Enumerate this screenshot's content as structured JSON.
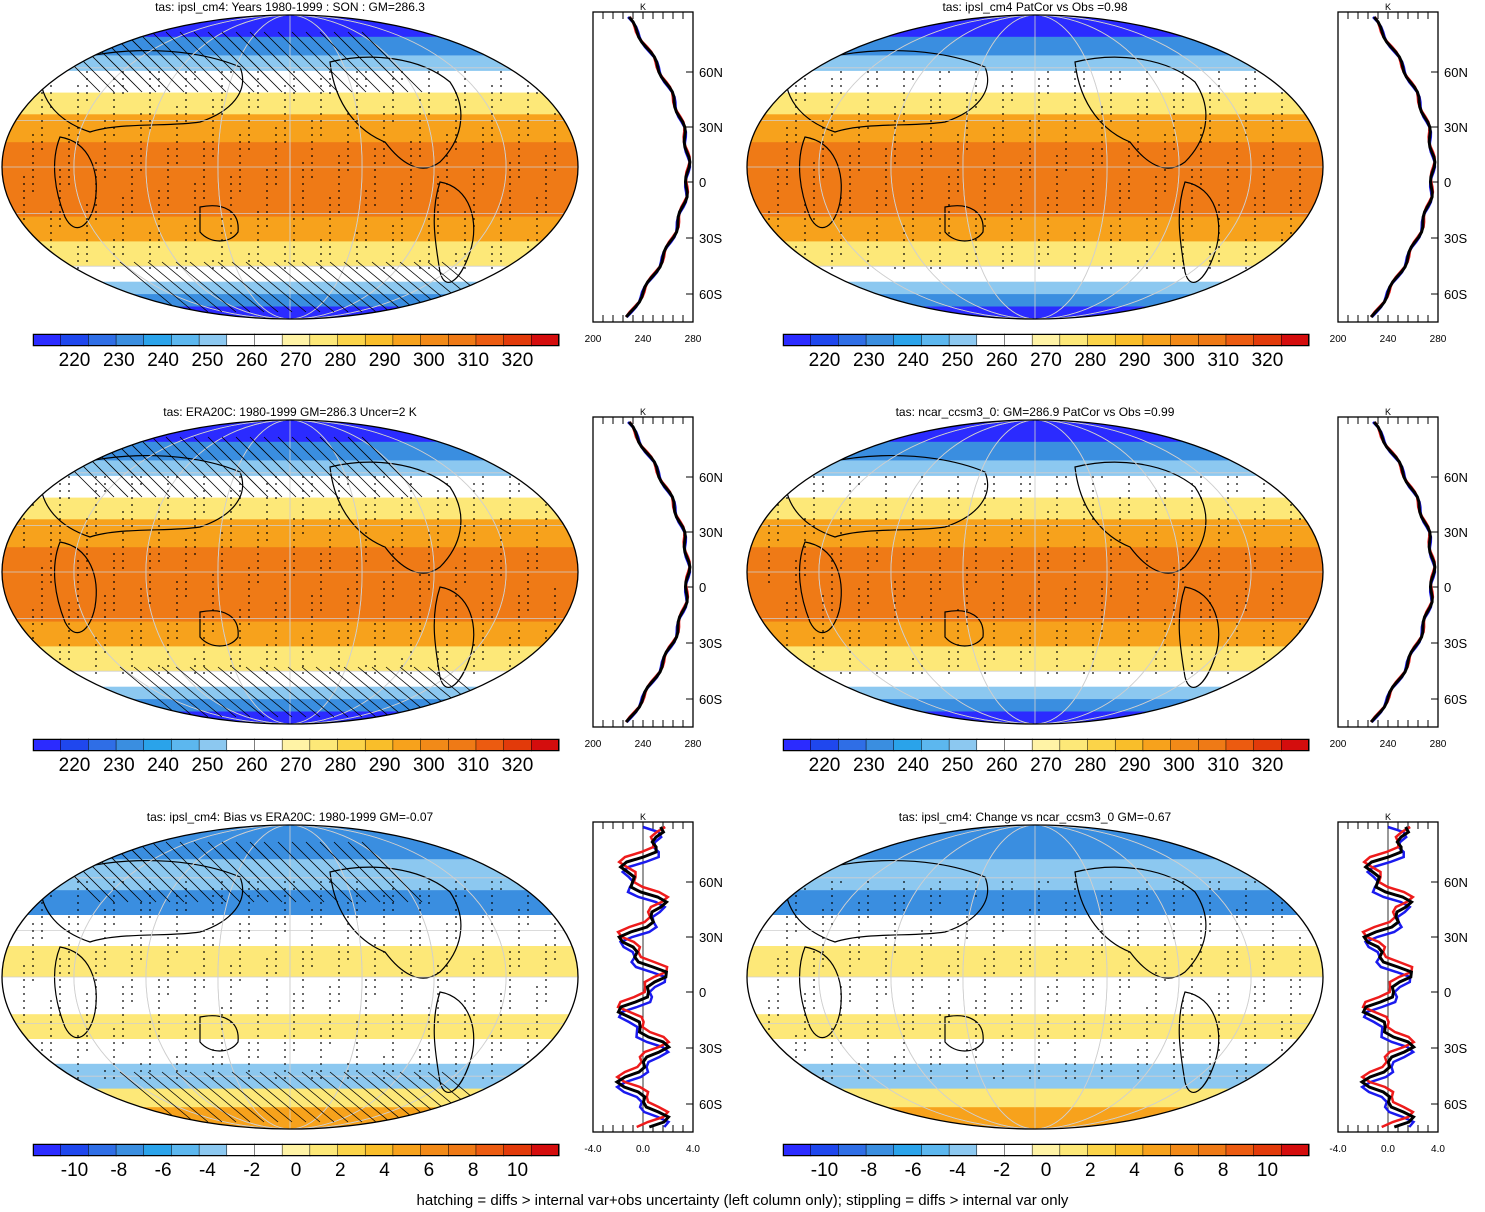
{
  "footnote": "hatching = diffs > internal var+obs uncertainty (left column only); stippling = diffs > internal var only",
  "colors": {
    "cold": "#2b2bff",
    "blue": "#3a8ee0",
    "lightblue": "#8cc8f0",
    "white": "#ffffff",
    "yellow": "#fde878",
    "orange": "#f7a21c",
    "deeporange": "#ef7a16",
    "red": "#d40d0d",
    "black": "#000000",
    "profile_red": "#ee1b1b",
    "profile_blue": "#1a1aee"
  },
  "panels": [
    {
      "id": "p1",
      "title": "tas: ipsl_cm4: Years 1980-1999 : SON : GM=286.3",
      "scale": "abs",
      "hatching": true,
      "profile_unit": "K",
      "profile_xticks": [
        "200",
        "240",
        "280"
      ],
      "lat_ticks": [
        "60N",
        "30N",
        "0",
        "30S",
        "60S"
      ]
    },
    {
      "id": "p2",
      "title": "tas: ipsl_cm4 PatCor vs Obs =0.98",
      "scale": "abs",
      "hatching": false,
      "profile_unit": "K",
      "profile_xticks": [
        "200",
        "240",
        "280"
      ],
      "lat_ticks": [
        "60N",
        "30N",
        "0",
        "30S",
        "60S"
      ]
    },
    {
      "id": "p3",
      "title": "tas: ERA20C: 1980-1999 GM=286.3 Uncer=2 K",
      "scale": "abs",
      "hatching": true,
      "profile_unit": "K",
      "profile_xticks": [
        "200",
        "240",
        "280"
      ],
      "lat_ticks": [
        "60N",
        "30N",
        "0",
        "30S",
        "60S"
      ]
    },
    {
      "id": "p4",
      "title": "tas: ncar_ccsm3_0: GM=286.9 PatCor vs Obs =0.99",
      "scale": "abs",
      "hatching": false,
      "profile_unit": "K",
      "profile_xticks": [
        "200",
        "240",
        "280"
      ],
      "lat_ticks": [
        "60N",
        "30N",
        "0",
        "30S",
        "60S"
      ]
    },
    {
      "id": "p5",
      "title": "tas: ipsl_cm4: Bias vs ERA20C: 1980-1999  GM=-0.07",
      "scale": "diff",
      "hatching": true,
      "profile_unit": "K",
      "profile_xticks": [
        "-4.0",
        "0.0",
        "4.0"
      ],
      "lat_ticks": [
        "60N",
        "30N",
        "0",
        "30S",
        "60S"
      ]
    },
    {
      "id": "p6",
      "title": "tas: ipsl_cm4: Change vs ncar_ccsm3_0 GM=-0.67",
      "scale": "diff",
      "hatching": false,
      "profile_unit": "K",
      "profile_xticks": [
        "-4.0",
        "0.0",
        "4.0"
      ],
      "lat_ticks": [
        "60N",
        "30N",
        "0",
        "30S",
        "60S"
      ]
    }
  ],
  "colorbars": {
    "abs": {
      "labels": [
        "220",
        "230",
        "240",
        "250",
        "260",
        "270",
        "280",
        "290",
        "300",
        "310",
        "320"
      ],
      "colors": [
        "#2b2bff",
        "#1f47ee",
        "#2f6ee6",
        "#3a8ee0",
        "#2aa3ea",
        "#5cb7ef",
        "#8cc8f0",
        "#ffffff",
        "#ffffff",
        "#fff3a6",
        "#fde878",
        "#fbd449",
        "#f9be2a",
        "#f7a21c",
        "#f28a18",
        "#ef7a16",
        "#ec5b10",
        "#e23a0a",
        "#d40d0d"
      ]
    },
    "diff": {
      "labels": [
        "-10",
        "-8",
        "-6",
        "-4",
        "-2",
        "0",
        "2",
        "4",
        "6",
        "8",
        "10"
      ],
      "colors": [
        "#2b2bff",
        "#1f47ee",
        "#2f6ee6",
        "#3a8ee0",
        "#2aa3ea",
        "#5cb7ef",
        "#8cc8f0",
        "#ffffff",
        "#ffffff",
        "#fff3a6",
        "#fde878",
        "#fbd449",
        "#f9be2a",
        "#f7a21c",
        "#f28a18",
        "#ef7a16",
        "#ec5b10",
        "#e23a0a",
        "#d40d0d"
      ]
    }
  }
}
